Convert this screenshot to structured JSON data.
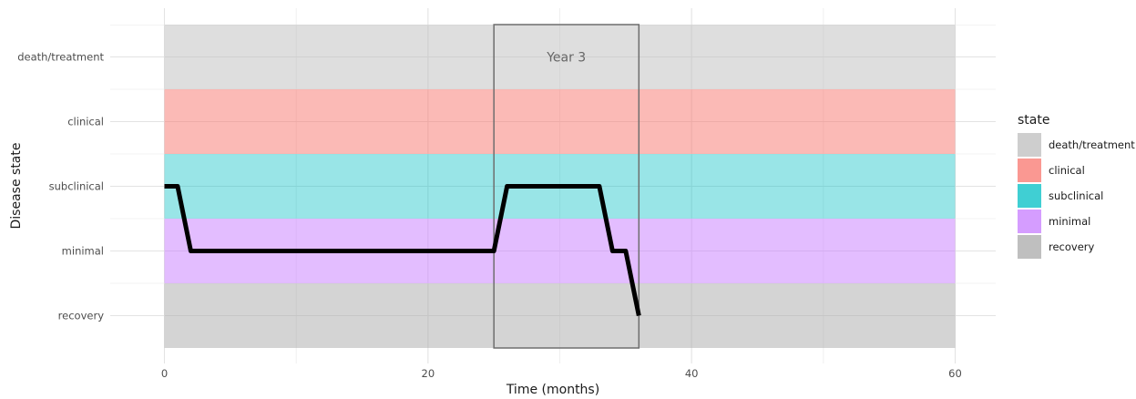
{
  "chart_data": {
    "type": "line",
    "xlabel": "Time (months)",
    "ylabel": "Disease state",
    "xlim": [
      -4,
      63
    ],
    "x_ticks": [
      0,
      20,
      40,
      60
    ],
    "x_minor_ticks": [
      10,
      30,
      50
    ],
    "states": [
      "recovery",
      "minimal",
      "subclinical",
      "clinical",
      "death/treatment"
    ],
    "grid": true,
    "bands": [
      {
        "state": "death/treatment",
        "x_range": [
          0,
          60
        ],
        "color": "#bebebe",
        "alpha": 0.5
      },
      {
        "state": "clinical",
        "x_range": [
          0,
          60
        ],
        "color": "#f8766d",
        "alpha": 0.5
      },
      {
        "state": "subclinical",
        "x_range": [
          0,
          60
        ],
        "color": "#00bfc4",
        "alpha": 0.4
      },
      {
        "state": "minimal",
        "x_range": [
          0,
          60
        ],
        "color": "#c77cff",
        "alpha": 0.5
      },
      {
        "state": "recovery",
        "x_range": [
          0,
          60
        ],
        "color": "#a9a9a9",
        "alpha": 0.5
      }
    ],
    "line": {
      "color": "#000000",
      "points": [
        {
          "x": 0,
          "state": "subclinical"
        },
        {
          "x": 1,
          "state": "subclinical"
        },
        {
          "x": 2,
          "state": "minimal"
        },
        {
          "x": 25,
          "state": "minimal"
        },
        {
          "x": 26,
          "state": "subclinical"
        },
        {
          "x": 33,
          "state": "subclinical"
        },
        {
          "x": 34,
          "state": "minimal"
        },
        {
          "x": 35,
          "state": "minimal"
        },
        {
          "x": 36,
          "state": "recovery"
        }
      ]
    },
    "annotation_box": {
      "x_range": [
        25,
        36
      ],
      "label": "Year 3"
    },
    "legend": {
      "title": "state",
      "position": "right",
      "entries": [
        {
          "label": "death/treatment",
          "color": "#bebebe"
        },
        {
          "label": "clinical",
          "color": "#f8766d"
        },
        {
          "label": "subclinical",
          "color": "#00bfc4"
        },
        {
          "label": "minimal",
          "color": "#c77cff"
        },
        {
          "label": "recovery",
          "color": "#a9a9a9"
        }
      ]
    }
  }
}
